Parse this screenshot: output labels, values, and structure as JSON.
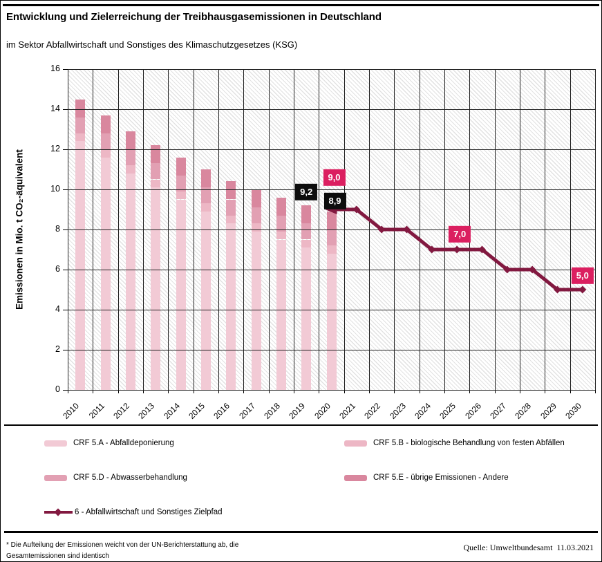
{
  "header": {
    "title": "Entwicklung und Zielerreichung der Treibhausgasemissionen in Deutschland",
    "subtitle": "im Sektor Abfallwirtschaft und Sonstiges des Klimaschutzgesetzes (KSG)"
  },
  "chart_data": {
    "type": "stacked-bar+line",
    "title": "Entwicklung und Zielerreichung der Treibhausgasemissionen in Deutschland im Sektor Abfallwirtschaft und Sonstiges des Klimaschutzgesetzes (KSG)",
    "ylabel": "Emissionen in Mio. t CO₂-äquivalent",
    "xlabel": "",
    "ylim": [
      0,
      16
    ],
    "ytick_step": 2,
    "grid": true,
    "plot_background": "diagonal-hatch",
    "categories": [
      "2010",
      "2011",
      "2012",
      "2013",
      "2014",
      "2015",
      "2016",
      "2017",
      "2018",
      "2019",
      "2020",
      "2021",
      "2022",
      "2023",
      "2024",
      "2025",
      "2026",
      "2027",
      "2028",
      "2029",
      "2030"
    ],
    "bar_categories": [
      "2010",
      "2011",
      "2012",
      "2013",
      "2014",
      "2015",
      "2016",
      "2017",
      "2018",
      "2019",
      "2020"
    ],
    "series": [
      {
        "name": "CRF 5.A - Abfalldeponierung",
        "color": "#F2CAD5",
        "values": [
          12.4,
          11.6,
          10.8,
          10.1,
          9.5,
          8.9,
          8.3,
          7.9,
          7.5,
          7.1,
          6.8
        ]
      },
      {
        "name": "CRF 5.B - biologische Behandlung von festen Abfällen",
        "color": "#EDB7C5",
        "values": [
          0.4,
          0.4,
          0.4,
          0.4,
          0.4,
          0.4,
          0.4,
          0.4,
          0.4,
          0.4,
          0.4
        ]
      },
      {
        "name": "CRF 5.D - Abwasserbehandlung",
        "color": "#E2A0B3",
        "values": [
          0.8,
          0.8,
          0.8,
          0.8,
          0.8,
          0.8,
          0.8,
          0.8,
          0.8,
          0.8,
          0.8
        ]
      },
      {
        "name": "CRF 5.E - übrige Emissionen - Andere",
        "color": "#D9879E",
        "values": [
          0.9,
          0.9,
          0.9,
          0.9,
          0.9,
          0.9,
          0.9,
          0.9,
          0.9,
          0.9,
          0.9
        ]
      }
    ],
    "bar_totals": [
      14.5,
      13.7,
      12.9,
      12.2,
      11.6,
      11.0,
      10.4,
      10.0,
      9.6,
      9.2,
      8.9
    ],
    "line_series": {
      "name": "6 - Abfallwirtschaft und Sonstiges Zielpfad",
      "color": "#821940",
      "x": [
        "2020",
        "2021",
        "2022",
        "2023",
        "2024",
        "2025",
        "2026",
        "2027",
        "2028",
        "2029",
        "2030"
      ],
      "values": [
        9.0,
        9.0,
        8.0,
        8.0,
        7.0,
        7.0,
        7.0,
        6.0,
        6.0,
        5.0,
        5.0
      ]
    },
    "data_labels": [
      {
        "text": "9,2",
        "year": "2019",
        "value": 9.2,
        "style": "black",
        "dx": 0,
        "gap": 7
      },
      {
        "text": "9,0",
        "year": "2020",
        "value": 9.0,
        "style": "pink",
        "dx": 4,
        "gap": 34
      },
      {
        "text": "8,9",
        "year": "2020",
        "value": 8.9,
        "style": "black",
        "dx": 5,
        "gap": 3
      },
      {
        "text": "7,0",
        "year": "2025",
        "value": 7.0,
        "style": "pink",
        "dx": 4,
        "gap": 10
      },
      {
        "text": "5,0",
        "year": "2030",
        "value": 5.0,
        "style": "pink",
        "dx": 0,
        "gap": 8
      }
    ],
    "label_colors": {
      "black": "#0d0d0d",
      "pink": "#DB1F60"
    }
  },
  "legend": {
    "items": [
      {
        "key": "crf-5a",
        "type": "swatch",
        "color": "#F2CAD5",
        "label": "CRF 5.A - Abfalldeponierung"
      },
      {
        "key": "crf-5b",
        "type": "swatch",
        "color": "#EDB7C5",
        "label": "CRF 5.B - biologische Behandlung von festen Abfällen"
      },
      {
        "key": "crf-5d",
        "type": "swatch",
        "color": "#E2A0B3",
        "label": "CRF 5.D - Abwasserbehandlung"
      },
      {
        "key": "crf-5e",
        "type": "swatch",
        "color": "#D9879E",
        "label": "CRF 5.E - übrige Emissionen - Andere"
      },
      {
        "key": "zielpfad",
        "type": "line",
        "color": "#821940",
        "label": "6 - Abfallwirtschaft und Sonstiges Zielpfad"
      }
    ]
  },
  "footer": {
    "footnote_line1": "* Die Aufteilung der Emissionen weicht von der UN-Berichterstattung ab, die",
    "footnote_line2": "Gesamtemissionen sind identisch",
    "source": "Quelle: Umweltbundesamt  11.03.2021"
  }
}
